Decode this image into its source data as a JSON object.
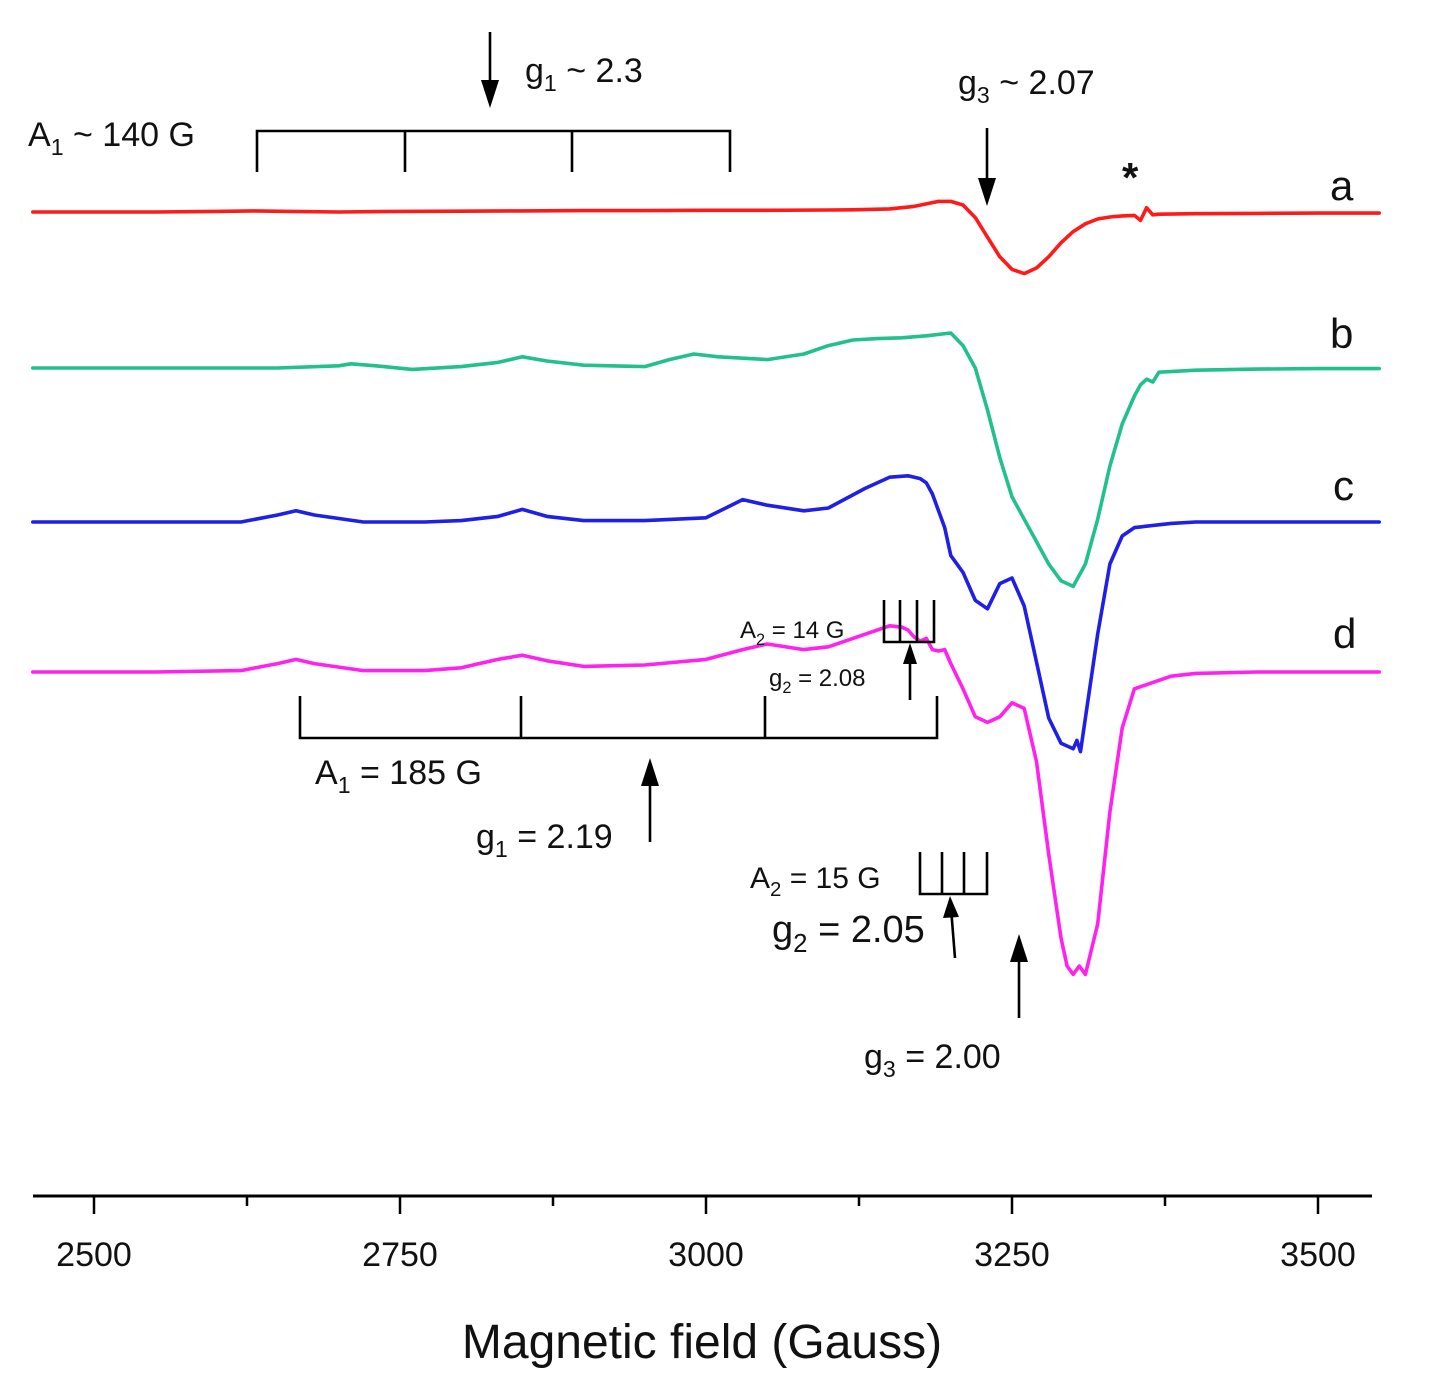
{
  "chart_data": {
    "type": "line",
    "title": "",
    "xlabel": "Magnetic field (Gauss)",
    "ylabel": "",
    "xlim": [
      2450,
      3550
    ],
    "xticks": [
      2500,
      2750,
      3000,
      3250,
      3500
    ],
    "tick_labels": [
      "2500",
      "2750",
      "3000",
      "3250",
      "3500"
    ],
    "y_axis_shown": false,
    "series": [
      {
        "name": "a",
        "color": "#ff1a1a",
        "x": [
          2450,
          2550,
          2600,
          2630,
          2660,
          2700,
          2750,
          2800,
          2850,
          2900,
          2950,
          3000,
          3050,
          3100,
          3120,
          3150,
          3170,
          3190,
          3200,
          3210,
          3220,
          3230,
          3240,
          3250,
          3260,
          3270,
          3280,
          3290,
          3300,
          3310,
          3320,
          3330,
          3340,
          3350,
          3355,
          3360,
          3365,
          3370,
          3400,
          3450,
          3500,
          3550
        ],
        "y": [
          0,
          0,
          0.02,
          0.04,
          0.02,
          0,
          0.02,
          0.03,
          0.04,
          0.05,
          0.05,
          0.06,
          0.06,
          0.07,
          0.08,
          0.11,
          0.2,
          0.38,
          0.38,
          0.25,
          -0.2,
          -0.9,
          -1.6,
          -2.05,
          -2.2,
          -2.0,
          -1.6,
          -1.1,
          -0.7,
          -0.42,
          -0.25,
          -0.18,
          -0.14,
          -0.12,
          -0.3,
          0.15,
          -0.1,
          -0.08,
          -0.06,
          -0.05,
          -0.04,
          -0.04
        ]
      },
      {
        "name": "b",
        "color": "#22c08a",
        "x": [
          2450,
          2550,
          2650,
          2700,
          2710,
          2730,
          2760,
          2800,
          2830,
          2850,
          2870,
          2900,
          2950,
          2970,
          2990,
          3010,
          3050,
          3080,
          3100,
          3120,
          3140,
          3160,
          3180,
          3200,
          3210,
          3220,
          3230,
          3240,
          3250,
          3260,
          3270,
          3280,
          3290,
          3300,
          3310,
          3320,
          3330,
          3340,
          3350,
          3355,
          3360,
          3365,
          3370,
          3400,
          3450,
          3500,
          3550
        ],
        "y": [
          0,
          0,
          0,
          0.08,
          0.15,
          0.08,
          -0.05,
          0.05,
          0.2,
          0.4,
          0.25,
          0.1,
          0.05,
          0.3,
          0.5,
          0.4,
          0.3,
          0.5,
          0.8,
          1.0,
          1.05,
          1.08,
          1.15,
          1.25,
          0.8,
          0,
          -1.5,
          -3.2,
          -4.6,
          -5.4,
          -6.2,
          -7.0,
          -7.6,
          -7.8,
          -7.0,
          -5.4,
          -3.5,
          -2.0,
          -1.0,
          -0.6,
          -0.4,
          -0.5,
          -0.15,
          -0.08,
          -0.04,
          -0.02,
          -0.02
        ]
      },
      {
        "name": "c",
        "color": "#1f1fe6",
        "x": [
          2450,
          2550,
          2620,
          2650,
          2665,
          2680,
          2720,
          2770,
          2800,
          2830,
          2850,
          2870,
          2900,
          2950,
          3000,
          3030,
          3050,
          3080,
          3100,
          3130,
          3150,
          3165,
          3175,
          3180,
          3185,
          3195,
          3200,
          3210,
          3220,
          3230,
          3240,
          3250,
          3260,
          3270,
          3280,
          3290,
          3300,
          3303,
          3306,
          3310,
          3320,
          3330,
          3340,
          3350,
          3380,
          3400,
          3450,
          3500,
          3550
        ],
        "y": [
          0,
          0,
          0,
          0.25,
          0.4,
          0.25,
          0,
          0,
          0.05,
          0.2,
          0.45,
          0.2,
          0.05,
          0.05,
          0.15,
          0.8,
          0.6,
          0.4,
          0.5,
          1.2,
          1.6,
          1.65,
          1.55,
          1.4,
          1.0,
          -0.2,
          -1.2,
          -1.8,
          -2.8,
          -3.1,
          -2.2,
          -2.0,
          -3.0,
          -5.0,
          -7.0,
          -7.9,
          -8.1,
          -7.8,
          -8.2,
          -7.0,
          -4.0,
          -1.5,
          -0.5,
          -0.2,
          -0.05,
          0,
          0,
          0,
          0
        ]
      },
      {
        "name": "d",
        "color": "#ff22ee",
        "x": [
          2450,
          2550,
          2620,
          2650,
          2665,
          2680,
          2720,
          2770,
          2800,
          2830,
          2850,
          2870,
          2900,
          2950,
          3000,
          3030,
          3050,
          3080,
          3100,
          3120,
          3150,
          3160,
          3165,
          3170,
          3175,
          3180,
          3185,
          3190,
          3195,
          3200,
          3210,
          3220,
          3230,
          3240,
          3250,
          3260,
          3270,
          3280,
          3290,
          3295,
          3300,
          3305,
          3310,
          3320,
          3330,
          3340,
          3350,
          3380,
          3400,
          3450,
          3500,
          3550
        ],
        "y": [
          0,
          0,
          0.05,
          0.3,
          0.45,
          0.3,
          0.05,
          0.05,
          0.15,
          0.45,
          0.6,
          0.4,
          0.2,
          0.25,
          0.45,
          0.8,
          1.0,
          0.8,
          0.9,
          1.2,
          1.65,
          1.6,
          1.5,
          1.25,
          1.1,
          1.2,
          0.8,
          0.75,
          0.8,
          0.3,
          -0.6,
          -1.6,
          -1.8,
          -1.6,
          -1.1,
          -1.3,
          -3.2,
          -6.5,
          -9.5,
          -10.5,
          -10.8,
          -10.5,
          -10.8,
          -9.0,
          -5.0,
          -2.0,
          -0.6,
          -0.15,
          -0.05,
          0,
          0,
          0
        ]
      }
    ],
    "annotations": {
      "a_g1": "g",
      "a_g1_sub": "1",
      "a_g1_val": " ~ 2.3",
      "a_A1": "A",
      "a_A1_sub": "1",
      "a_A1_val": " ~ 140 G",
      "a_g3": "g",
      "a_g3_sub": "3",
      "a_g3_val": " ~ 2.07",
      "asterisk": "*",
      "d_A2_small": "A",
      "d_A2_small_sub": "2",
      "d_A2_small_val": " = 14 G",
      "d_g2_small": "g",
      "d_g2_small_sub": "2",
      "d_g2_small_val": " = 2.08",
      "d_A1": "A",
      "d_A1_sub": "1",
      "d_A1_val": " = 185 G",
      "d_g1": "g",
      "d_g1_sub": "1",
      "d_g1_val": " = 2.19",
      "d_A2": "A",
      "d_A2_sub": "2",
      "d_A2_val": " = 15 G",
      "d_g2": "g",
      "d_g2_sub": "2",
      "d_g2_val": " = 2.05",
      "d_g3": "g",
      "d_g3_sub": "3",
      "d_g3_val": " = 2.00"
    }
  }
}
